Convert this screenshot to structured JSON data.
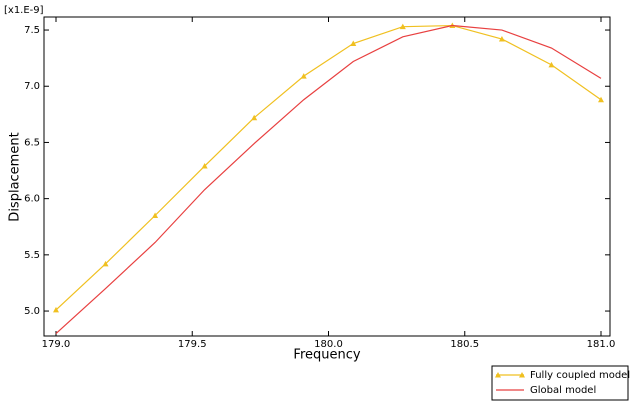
{
  "chart_data": {
    "type": "line",
    "axis_note": "[x1.E-9]",
    "x_label": "Frequency",
    "y_label": "Displacement",
    "x": [
      179.0,
      179.1818,
      179.3636,
      179.5455,
      179.7273,
      179.9091,
      180.0909,
      180.2727,
      180.4545,
      180.6364,
      180.8182,
      181.0
    ],
    "series": [
      {
        "name": "Fully coupled model",
        "color": "#f0c020",
        "marker": "triangle",
        "values": [
          5.01,
          5.42,
          5.85,
          6.29,
          6.72,
          7.09,
          7.38,
          7.53,
          7.54,
          7.42,
          7.19,
          6.88
        ]
      },
      {
        "name": "Global model",
        "color": "#e84040",
        "values": [
          4.8,
          5.2,
          5.61,
          6.08,
          6.49,
          6.88,
          7.22,
          7.44,
          7.54,
          7.5,
          7.34,
          7.07
        ]
      }
    ],
    "xlim": [
      178.956,
      181.033
    ],
    "ylim": [
      4.778,
      7.616
    ],
    "xticks": [
      {
        "value": 179.0,
        "label": "179.0"
      },
      {
        "value": 179.5,
        "label": "179.5"
      },
      {
        "value": 180.0,
        "label": "180.0"
      },
      {
        "value": 180.5,
        "label": "180.5"
      },
      {
        "value": 181.0,
        "label": "181.0"
      }
    ],
    "yticks": [
      {
        "value": 5.0,
        "label": "5.0"
      },
      {
        "value": 5.5,
        "label": "5.5"
      },
      {
        "value": 6.0,
        "label": "6.0"
      },
      {
        "value": 6.5,
        "label": "6.5"
      },
      {
        "value": 7.0,
        "label": "7.0"
      },
      {
        "value": 7.5,
        "label": "7.5"
      }
    ],
    "legend": "bottom-right"
  }
}
